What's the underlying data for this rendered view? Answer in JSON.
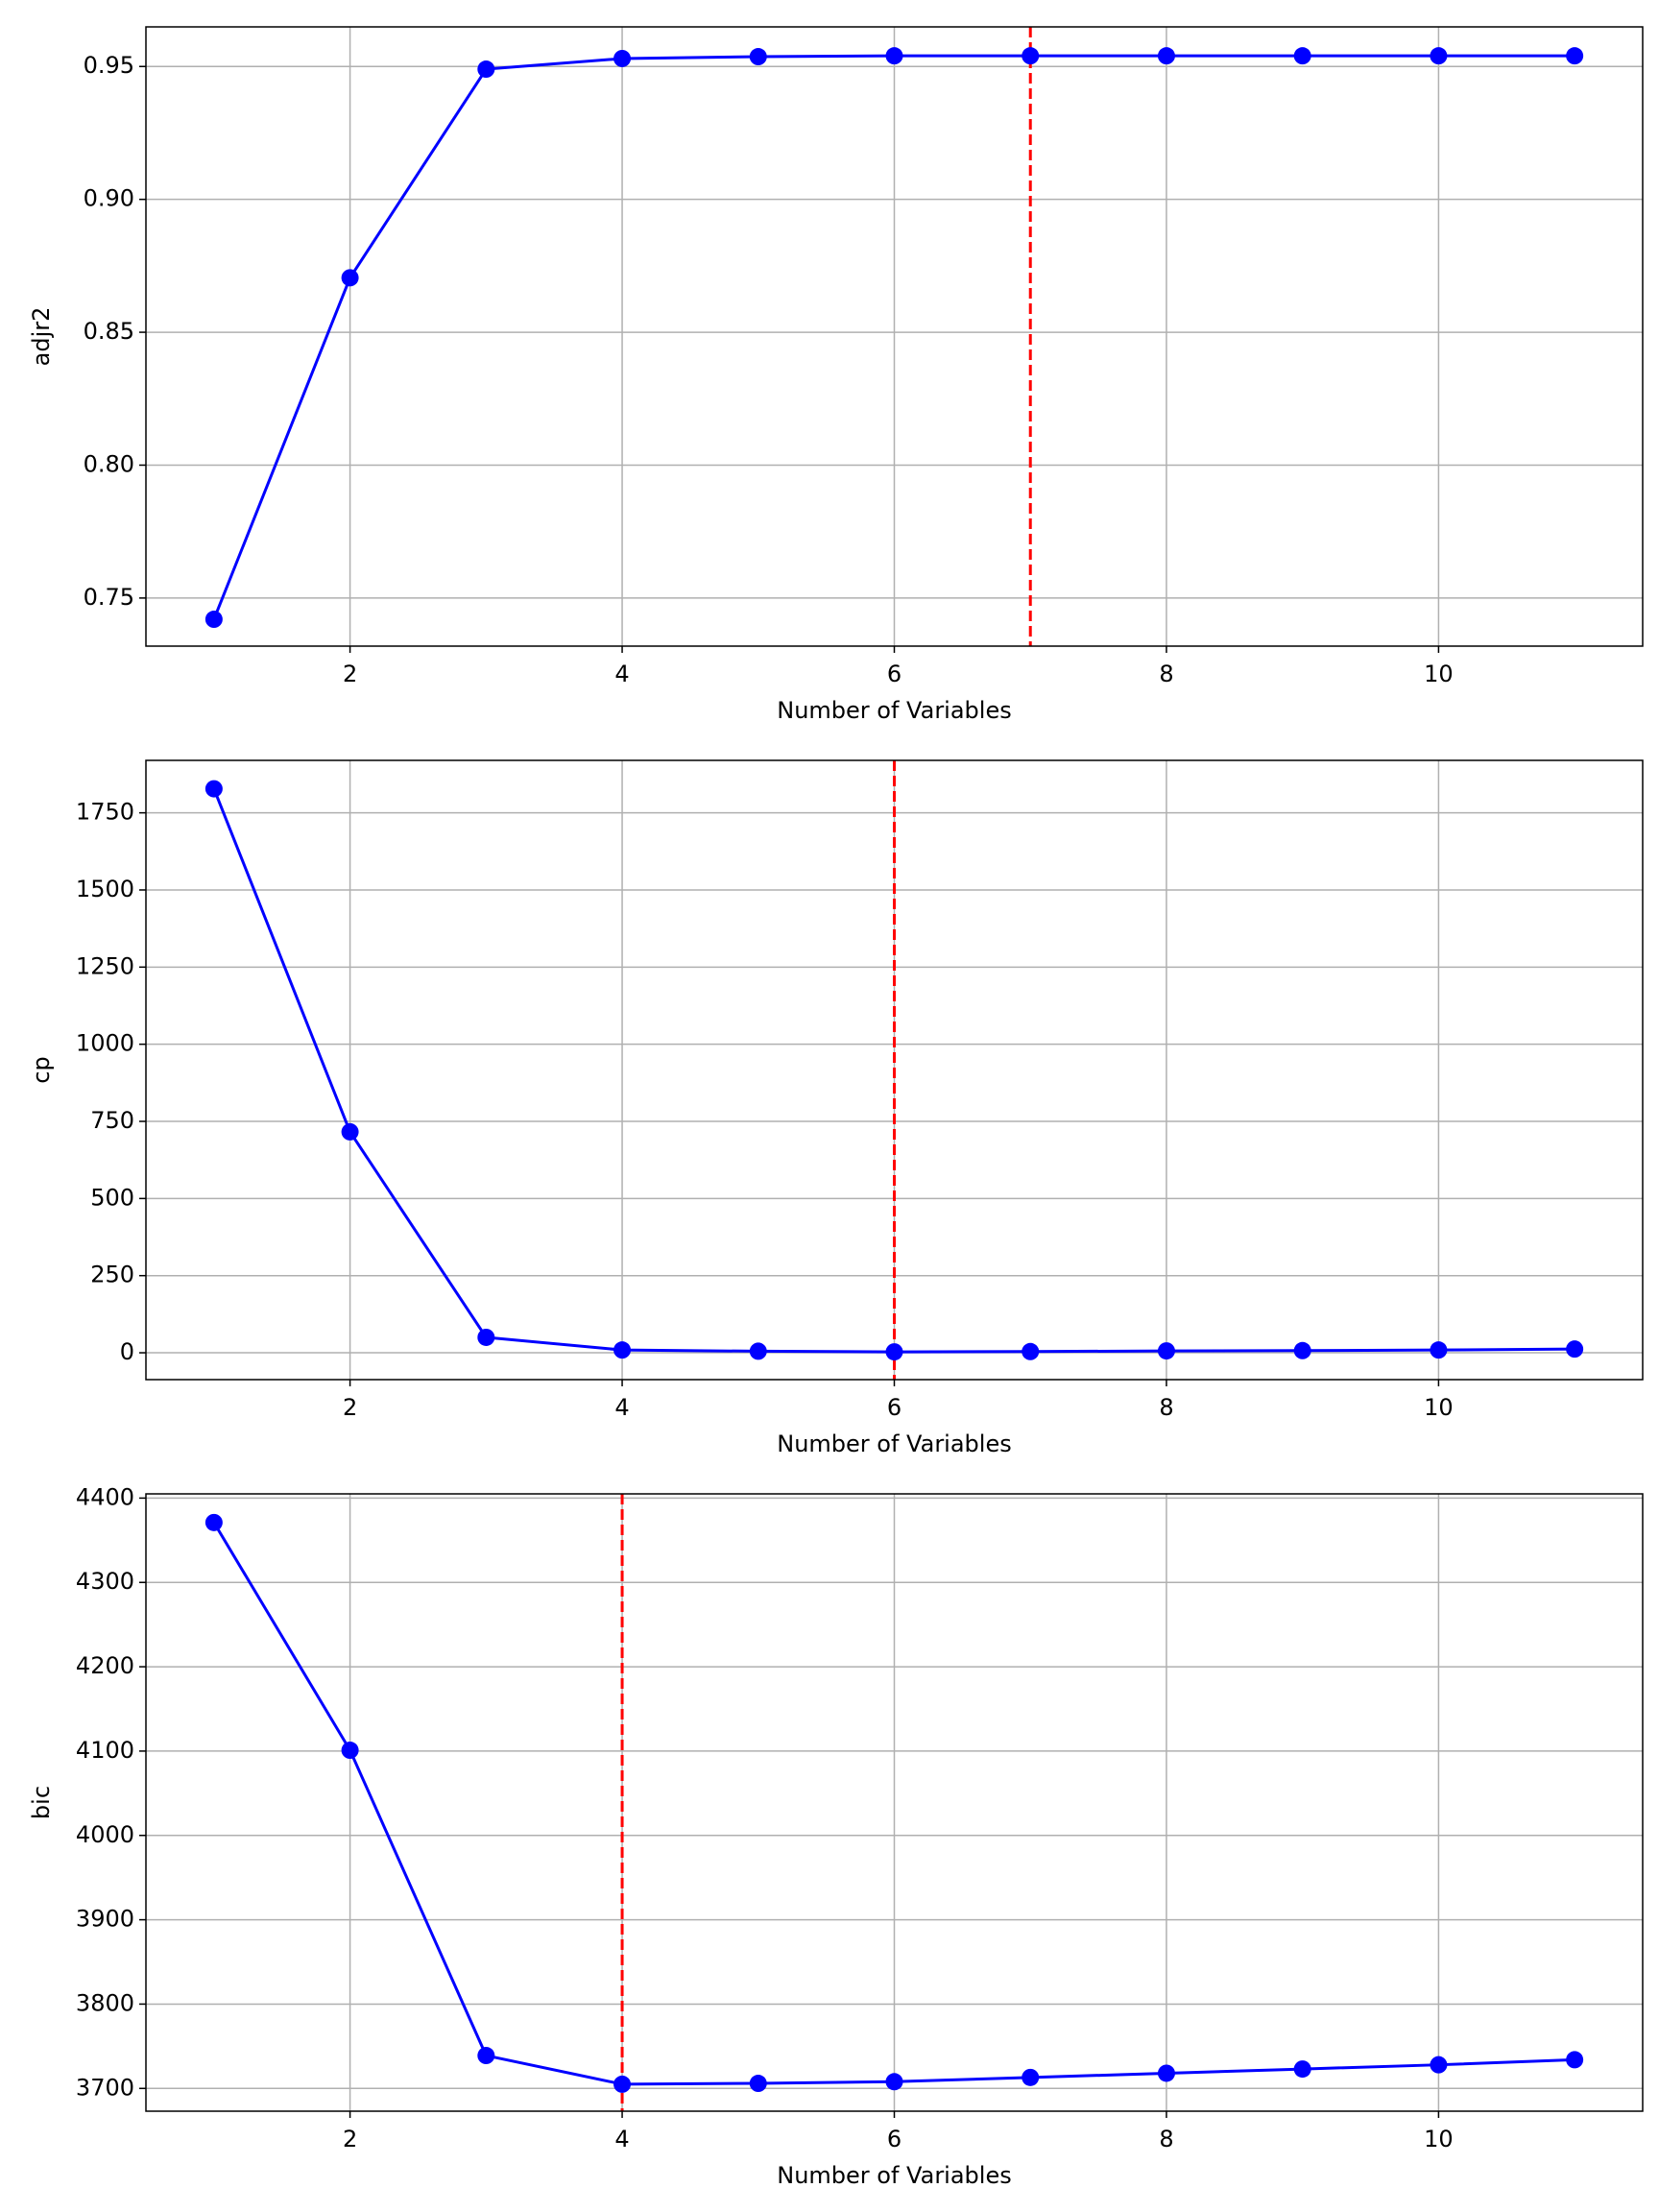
{
  "chart_data": [
    {
      "type": "line",
      "ylabel": "adjr2",
      "xlabel": "Number of Variables",
      "x": [
        1,
        2,
        3,
        4,
        5,
        6,
        7,
        8,
        9,
        10,
        11
      ],
      "values": [
        0.742,
        0.8705,
        0.949,
        0.953,
        0.9537,
        0.954,
        0.954,
        0.954,
        0.954,
        0.954,
        0.954
      ],
      "color": "#0000ff",
      "vline": 7,
      "vline_color": "#ff0000",
      "xlim": [
        0.5,
        11.5
      ],
      "xticks": [
        2,
        4,
        6,
        8,
        10
      ],
      "ylim": [
        0.7319,
        0.9649
      ],
      "yticks": [
        0.75,
        {
          "value": 0.8,
          "label": "0.80"
        },
        0.85,
        {
          "value": 0.9,
          "label": "0.90"
        },
        0.95
      ],
      "grid": true
    },
    {
      "type": "line",
      "ylabel": "cp",
      "xlabel": "Number of Variables",
      "x": [
        1,
        2,
        3,
        4,
        5,
        6,
        7,
        8,
        9,
        10,
        11
      ],
      "values": [
        1828,
        716,
        50,
        9,
        5,
        3,
        4,
        6,
        7,
        9,
        12
      ],
      "color": "#0000ff",
      "vline": 6,
      "vline_color": "#ff0000",
      "xlim": [
        0.5,
        11.5
      ],
      "xticks": [
        2,
        4,
        6,
        8,
        10
      ],
      "ylim": [
        -87,
        1920
      ],
      "yticks": [
        0,
        250,
        500,
        750,
        1000,
        1250,
        1500,
        1750
      ],
      "grid": true
    },
    {
      "type": "line",
      "ylabel": "bic",
      "xlabel": "Number of Variables",
      "x": [
        1,
        2,
        3,
        4,
        5,
        6,
        7,
        8,
        9,
        10,
        11
      ],
      "values": [
        4371,
        4101,
        3739,
        3705,
        3706,
        3708,
        3713,
        3718,
        3723,
        3728,
        3734
      ],
      "color": "#0000ff",
      "vline": 4,
      "vline_color": "#ff0000",
      "xlim": [
        0.5,
        11.5
      ],
      "xticks": [
        2,
        4,
        6,
        8,
        10
      ],
      "ylim": [
        3673,
        4405
      ],
      "yticks": [
        3700,
        3800,
        3900,
        4000,
        4100,
        4200,
        4300,
        4400
      ],
      "grid": true
    }
  ]
}
